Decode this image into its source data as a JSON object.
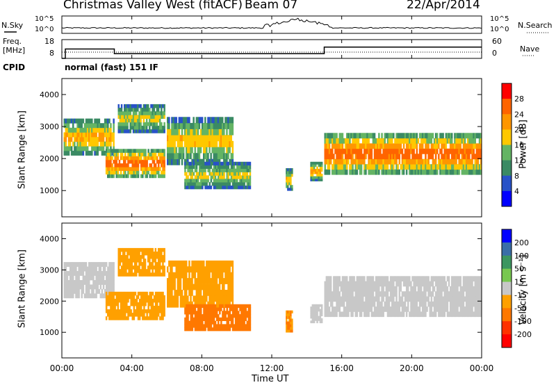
{
  "header": {
    "site": "Christmas Valley West (fitACF)",
    "beam": "Beam 07",
    "date": "22/Apr/2014"
  },
  "status_panels": {
    "nsky": {
      "label": "N.Sky",
      "ticks": [
        "10^5",
        "10^0"
      ]
    },
    "nsearch": {
      "label": "N.Search",
      "ticks": [
        "10^5",
        "10^0"
      ]
    },
    "freq": {
      "label_line1": "Freq.",
      "label_line2": "[MHz]",
      "ticks": [
        "18",
        "8"
      ]
    },
    "nave": {
      "label": "Nave",
      "ticks": [
        "60",
        "0"
      ]
    },
    "cpid": {
      "label": "CPID",
      "value": "normal (fast) 151 IF"
    }
  },
  "power_scale": {
    "label": "Power [dB]",
    "ticks": [
      "28",
      "24",
      "20",
      "16",
      "12",
      "8",
      "4"
    ]
  },
  "velocity_scale": {
    "label": "Velocity [m s⁻¹]",
    "ticks": [
      "200",
      "100",
      "50",
      "15",
      "-15",
      "-50",
      "-100",
      "-200"
    ]
  },
  "axes": {
    "ylabel": "Slant Range [km]",
    "xlabel": "Time UT",
    "y_ticks": [
      "1000",
      "2000",
      "3000",
      "4000"
    ],
    "x_ticks": [
      "00:00",
      "04:00",
      "08:00",
      "12:00",
      "16:00",
      "20:00",
      "00:00"
    ]
  },
  "chart_data": {
    "type": "heatmap",
    "panels": [
      "power",
      "velocity"
    ],
    "x_range_hours": [
      0,
      24
    ],
    "y_range_km": [
      180,
      4500
    ],
    "power_colors": [
      "#0000ff",
      "#2852c8",
      "#3a8a64",
      "#64b464",
      "#ffc800",
      "#ff9600",
      "#ff6400",
      "#ff0000"
    ],
    "velocity_colors": [
      "#0000ff",
      "#3a6ea8",
      "#3c9660",
      "#78c850",
      "#c8c8c8",
      "#ffa000",
      "#ff7800",
      "#ff3200",
      "#ff0000"
    ],
    "power_bands": [
      {
        "t0": 0.1,
        "t1": 3.0,
        "r0": 2100,
        "r1": 3250,
        "peak_dB": 22
      },
      {
        "t0": 2.5,
        "t1": 5.9,
        "r0": 1400,
        "r1": 2300,
        "peak_dB": 28
      },
      {
        "t0": 3.2,
        "t1": 5.9,
        "r0": 2800,
        "r1": 3700,
        "peak_dB": 18
      },
      {
        "t0": 6.0,
        "t1": 9.8,
        "r0": 1800,
        "r1": 3300,
        "peak_dB": 20
      },
      {
        "t0": 7.0,
        "t1": 10.8,
        "r0": 1050,
        "r1": 1900,
        "peak_dB": 18
      },
      {
        "t0": 12.8,
        "t1": 13.2,
        "r0": 1000,
        "r1": 1700,
        "peak_dB": 20
      },
      {
        "t0": 14.2,
        "t1": 14.9,
        "r0": 1300,
        "r1": 1900,
        "peak_dB": 22
      },
      {
        "t0": 15.0,
        "t1": 24.0,
        "r0": 1500,
        "r1": 2800,
        "peak_dB": 28
      }
    ],
    "velocity_bands": [
      {
        "t0": 0.1,
        "t1": 3.0,
        "r0": 2100,
        "r1": 3250,
        "vel": 0
      },
      {
        "t0": 2.5,
        "t1": 5.9,
        "r0": 1400,
        "r1": 2300,
        "vel": -40
      },
      {
        "t0": 3.2,
        "t1": 5.9,
        "r0": 2800,
        "r1": 3700,
        "vel": -40
      },
      {
        "t0": 6.0,
        "t1": 9.8,
        "r0": 1800,
        "r1": 3300,
        "vel": -30
      },
      {
        "t0": 7.0,
        "t1": 10.8,
        "r0": 1050,
        "r1": 1900,
        "vel": -80
      },
      {
        "t0": 12.8,
        "t1": 13.2,
        "r0": 1000,
        "r1": 1700,
        "vel": -50
      },
      {
        "t0": 14.2,
        "t1": 14.9,
        "r0": 1300,
        "r1": 1900,
        "vel": 0
      },
      {
        "t0": 15.0,
        "t1": 24.0,
        "r0": 1500,
        "r1": 2800,
        "vel": 0
      }
    ],
    "freq_mhz": [
      {
        "t0": 0,
        "t1": 0.2,
        "f": 8
      },
      {
        "t0": 0.2,
        "t1": 3.0,
        "f": 13
      },
      {
        "t0": 3.0,
        "t1": 15.0,
        "f": 10.5
      },
      {
        "t0": 15.0,
        "t1": 24.0,
        "f": 14
      }
    ],
    "nave": [
      {
        "t0": 0,
        "t1": 24,
        "n": 20
      }
    ],
    "nsky_peak": {
      "t": 13.5,
      "note": "bump near 12:00-15:00"
    }
  }
}
